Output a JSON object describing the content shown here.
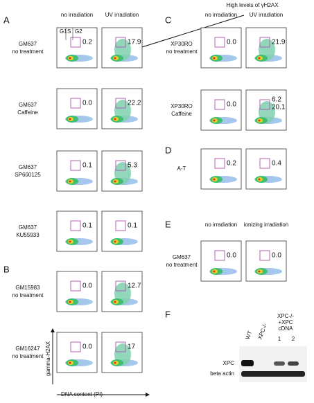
{
  "annotation": "High levels of γH2AX",
  "gates": [
    "G1",
    "S",
    "G2"
  ],
  "axes": {
    "y": "gamma-H2AX",
    "x": "DNA content (PI)"
  },
  "panels": [
    {
      "label": "A",
      "headers": [
        "no irradiation",
        "UV irradiation"
      ],
      "rows": [
        {
          "sample": "GM637",
          "treatment": "no treatment",
          "values": [
            [
              "0.2"
            ],
            [
              "17.9"
            ]
          ]
        },
        {
          "sample": "GM637",
          "treatment": "Caffeine",
          "values": [
            [
              "0.0"
            ],
            [
              "22.2"
            ]
          ]
        },
        {
          "sample": "GM637",
          "treatment": "SP600125",
          "values": [
            [
              "0.1"
            ],
            [
              "5.3"
            ]
          ]
        },
        {
          "sample": "GM637",
          "treatment": "KU55933",
          "values": [
            [
              "0.1"
            ],
            [
              "0.1"
            ]
          ]
        }
      ]
    },
    {
      "label": "B",
      "rows": [
        {
          "sample": "GM15983",
          "treatment": "no treatment",
          "values": [
            [
              "0.0"
            ],
            [
              "12.7"
            ]
          ]
        },
        {
          "sample": "GM16247",
          "treatment": "no treatment",
          "values": [
            [
              "0.0"
            ],
            [
              "17"
            ]
          ]
        }
      ]
    },
    {
      "label": "C",
      "headers": [
        "no irradiation",
        "UV irradiation"
      ],
      "rows": [
        {
          "sample": "XP30RO",
          "treatment": "no treatment",
          "values": [
            [
              "0.0"
            ],
            [
              "21.9"
            ]
          ]
        },
        {
          "sample": "XP30RO",
          "treatment": "Caffeine",
          "values": [
            [
              "0.0"
            ],
            [
              "6.2",
              "20.1"
            ]
          ]
        }
      ]
    },
    {
      "label": "D",
      "rows": [
        {
          "sample": "A-T",
          "values": [
            [
              "0.2"
            ],
            [
              "0.4"
            ]
          ]
        }
      ]
    },
    {
      "label": "E",
      "headers": [
        "no irradiation",
        "ionizing irradiation"
      ],
      "rows": [
        {
          "sample": "GM637",
          "treatment": "no treatment",
          "values": [
            [
              "0.0"
            ],
            [
              "0.0"
            ]
          ]
        }
      ]
    },
    {
      "label": "F"
    }
  ],
  "blot": {
    "lanes": [
      "WT",
      "XPC-/-"
    ],
    "rescue": [
      "XPC-/-",
      "+XPC",
      "cDNA"
    ],
    "clones": [
      "1",
      "2"
    ],
    "rows": [
      "XPC",
      "beta actin"
    ]
  }
}
